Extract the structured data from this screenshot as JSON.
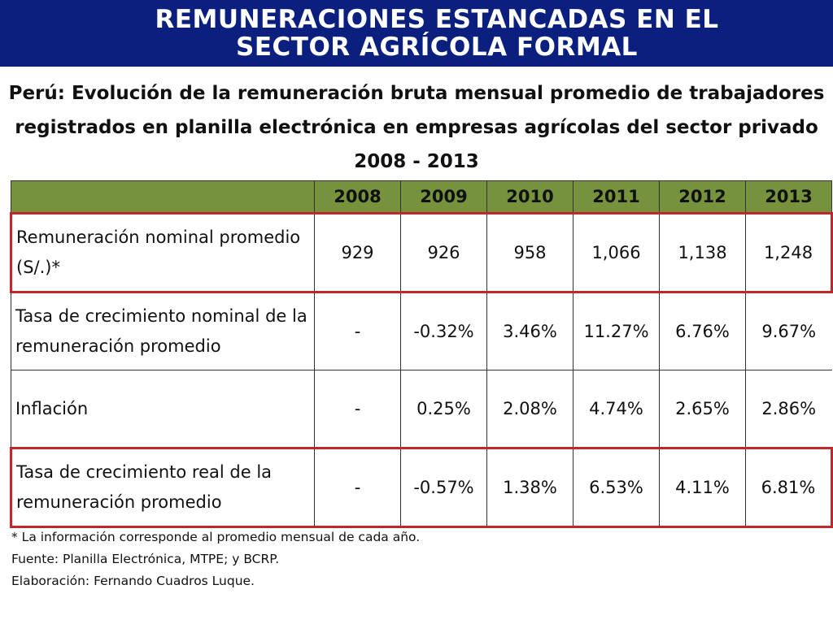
{
  "header": {
    "title_line1": "REMUNERACIONES ESTANCADAS EN EL",
    "title_line2": "SECTOR AGRÍCOLA FORMAL"
  },
  "subtitle": {
    "line1": "Perú: Evolución de la remuneración bruta mensual promedio de trabajadores",
    "line2": "registrados en planilla electrónica en empresas agrícolas del sector privado",
    "line3": "2008 - 2013"
  },
  "table": {
    "colors": {
      "header_bg": "#76923c",
      "highlight_border": "#c0272d",
      "title_bg": "#0a1f7e"
    },
    "years": [
      "2008",
      "2009",
      "2010",
      "2011",
      "2012",
      "2013"
    ],
    "rows": [
      {
        "label": "Remuneración nominal promedio (S/.)*",
        "values": [
          "929",
          "926",
          "958",
          "1,066",
          "1,138",
          "1,248"
        ]
      },
      {
        "label": "Tasa de crecimiento nominal de la remuneración promedio",
        "values": [
          "-",
          "-0.32%",
          "3.46%",
          "11.27%",
          "6.76%",
          "9.67%"
        ]
      },
      {
        "label": "Inflación",
        "values": [
          "-",
          "0.25%",
          "2.08%",
          "4.74%",
          "2.65%",
          "2.86%"
        ]
      },
      {
        "label": "Tasa de crecimiento real de la remuneración promedio",
        "values": [
          "-",
          "-0.57%",
          "1.38%",
          "6.53%",
          "4.11%",
          "6.81%"
        ]
      }
    ]
  },
  "notes": {
    "note": "* La información corresponde al promedio mensual de cada año.",
    "source": "Fuente: Planilla Electrónica, MTPE; y BCRP.",
    "author": "Elaboración: Fernando Cuadros Luque."
  }
}
